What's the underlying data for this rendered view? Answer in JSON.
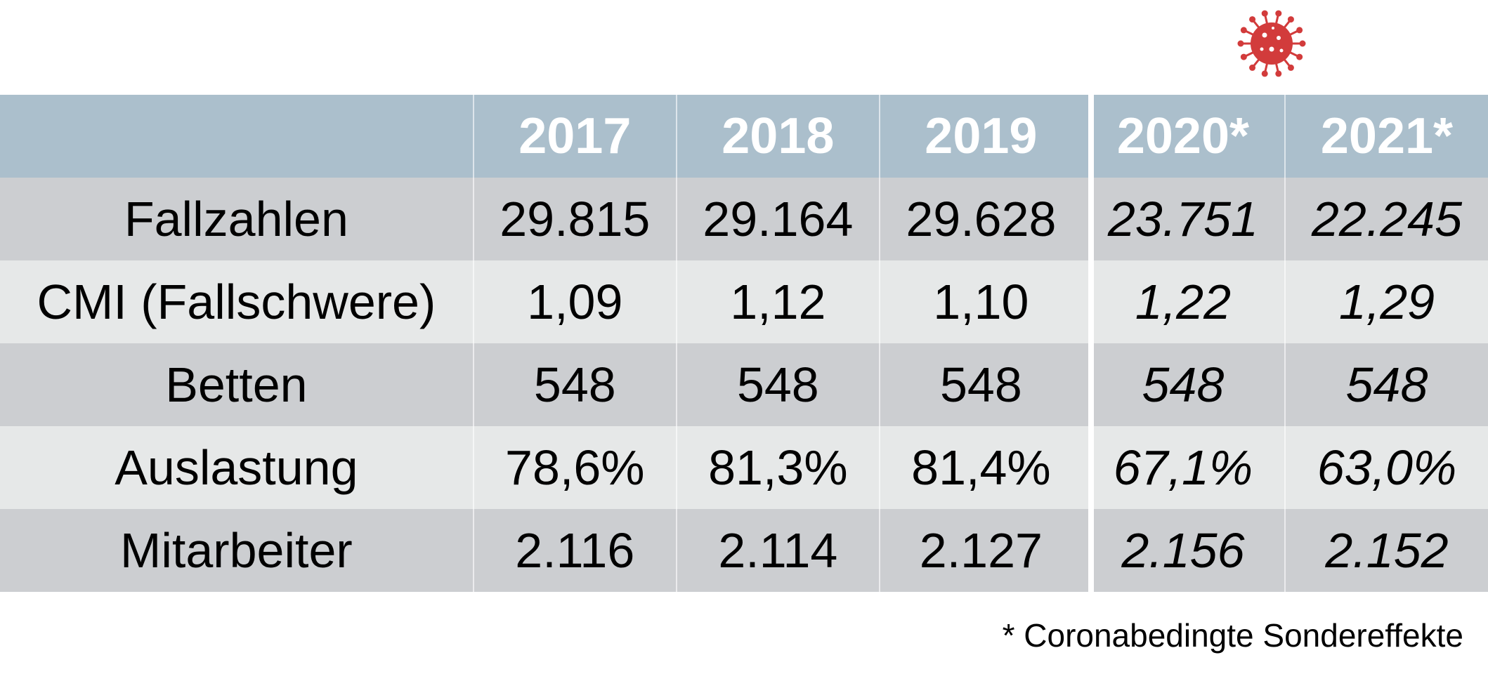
{
  "chart_data": {
    "type": "table",
    "columns": [
      "",
      "2017",
      "2018",
      "2019",
      "2020*",
      "2021*"
    ],
    "rows": [
      {
        "label": "Fallzahlen",
        "values": [
          "29.815",
          "29.164",
          "29.628",
          "23.751",
          "22.245"
        ]
      },
      {
        "label": "CMI (Fallschwere)",
        "values": [
          "1,09",
          "1,12",
          "1,10",
          "1,22",
          "1,29"
        ]
      },
      {
        "label": "Betten",
        "values": [
          "548",
          "548",
          "548",
          "548",
          "548"
        ]
      },
      {
        "label": "Auslastung",
        "values": [
          "78,6%",
          "81,3%",
          "81,4%",
          "67,1%",
          "63,0%"
        ]
      },
      {
        "label": "Mitarbeiter",
        "values": [
          "2.116",
          "2.114",
          "2.127",
          "2.156",
          "2.152"
        ]
      }
    ],
    "footnote": "* Coronabedingte Sondereffekte"
  },
  "colors": {
    "header_bg": "#abbfcc",
    "row_dark": "#ccced1",
    "row_light": "#e6e8e8",
    "virus": "#d23b3b"
  },
  "icons": [
    "coronavirus-icon"
  ]
}
